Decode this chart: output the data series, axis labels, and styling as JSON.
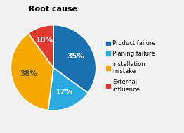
{
  "title": "Root cause",
  "slices": [
    35,
    17,
    38,
    10
  ],
  "pct_labels": [
    "35%",
    "17%",
    "38%",
    "10%"
  ],
  "colors": [
    "#1a6faf",
    "#29abe2",
    "#f5a800",
    "#e03a2e"
  ],
  "legend_labels": [
    "Product failure",
    "Planing failure",
    "Installation\nmistake",
    "External\ninfluence"
  ],
  "startangle": 90,
  "title_fontsize": 8,
  "label_fontsize": 7.5,
  "label_colors": [
    "white",
    "white",
    "#555555",
    "white"
  ],
  "label_offsets": [
    0.58,
    0.62,
    0.6,
    0.68
  ],
  "background_color": "#f2f2f2"
}
